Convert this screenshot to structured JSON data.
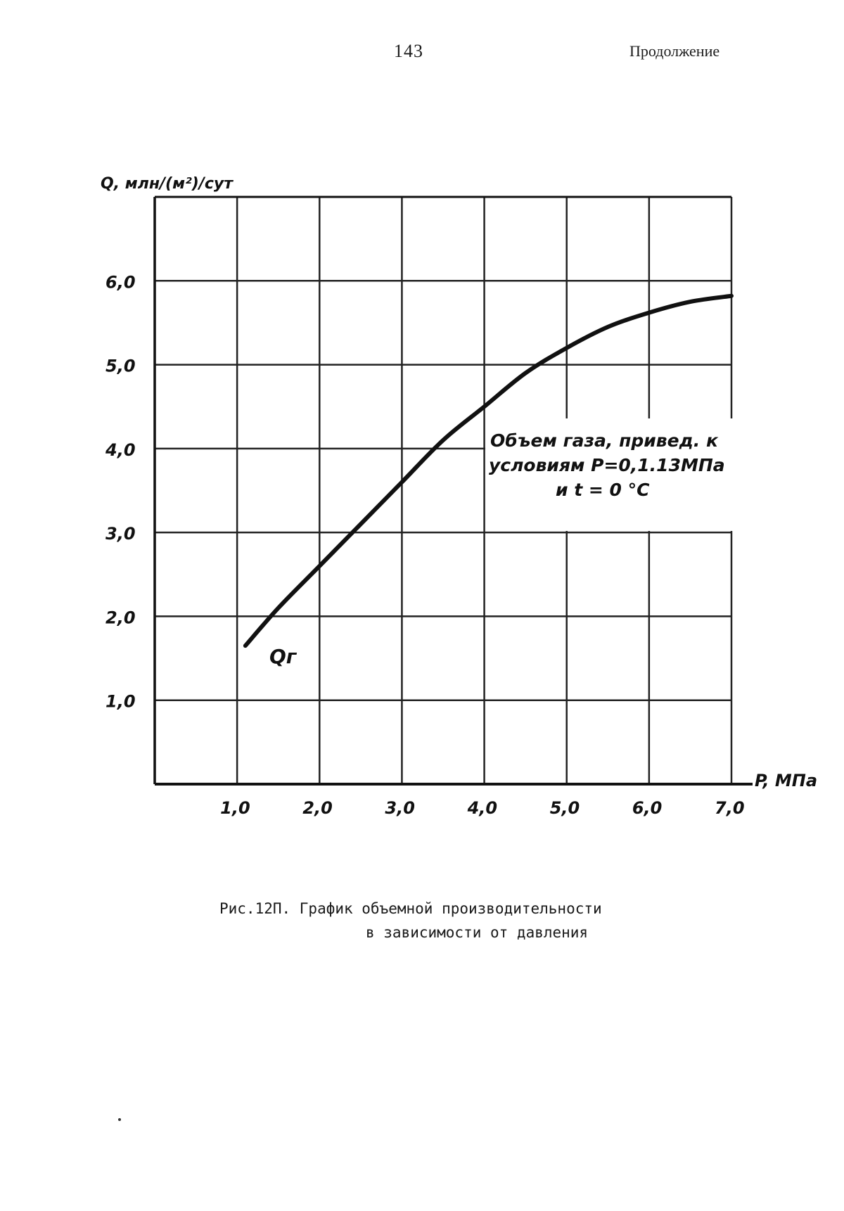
{
  "header": {
    "page_number": "143",
    "continuation": "Продолжение"
  },
  "chart_data": {
    "type": "line",
    "title": "",
    "xlabel": "P, МПа",
    "ylabel": "Q, млн/(м²)/сут",
    "x_ticks": [
      "1,0",
      "2,0",
      "3,0",
      "4,0",
      "5,0",
      "6,0",
      "7,0"
    ],
    "y_ticks": [
      "1,0",
      "2,0",
      "3,0",
      "4,0",
      "5,0",
      "6,0"
    ],
    "xlim": [
      0,
      7
    ],
    "ylim": [
      0,
      7
    ],
    "grid": true,
    "series": [
      {
        "x": [
          1.1,
          1.5,
          2.0,
          2.5,
          3.0,
          3.5,
          4.0,
          4.5,
          5.0,
          5.5,
          6.0,
          6.5,
          7.0
        ],
        "y": [
          1.65,
          2.1,
          2.6,
          3.1,
          3.6,
          4.1,
          4.5,
          4.9,
          5.2,
          5.45,
          5.62,
          5.75,
          5.82
        ]
      }
    ],
    "annotations": [
      "Объем газа, привед. к",
      "условиям P=0,1.13МПа",
      "и t = 0 °C"
    ],
    "curve_label": "Qг"
  },
  "caption": {
    "line1": "Рис.12П. График объемной производительности",
    "line2": "в зависимости от давления"
  }
}
